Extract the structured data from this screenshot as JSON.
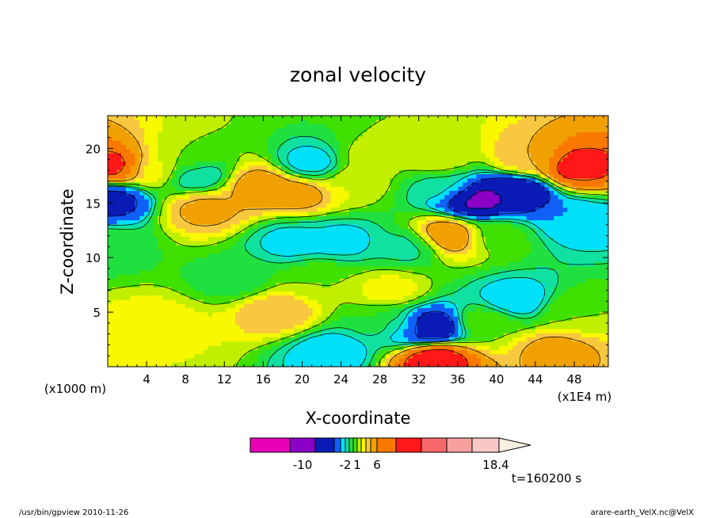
{
  "chart_data": {
    "type": "heatmap",
    "title": "zonal velocity",
    "xlabel": "X-coordinate",
    "ylabel": "Z-coordinate",
    "x_unit_label": "(x1000 m)",
    "x_scale_label": "(x1E4 m)",
    "time_label": "t=160200 s",
    "xlim": [
      0,
      51.5
    ],
    "ylim": [
      0,
      23
    ],
    "x_ticks": [
      "4",
      "8",
      "12",
      "16",
      "20",
      "24",
      "28",
      "32",
      "36",
      "40",
      "44",
      "48"
    ],
    "y_ticks": [
      "5",
      "10",
      "15",
      "20"
    ],
    "colorbar": {
      "labels": [
        "-10",
        "-2",
        "1",
        "6",
        "18.4"
      ],
      "label_values": [
        -10,
        -2,
        1,
        6,
        18.4
      ],
      "levels": [
        -16,
        -12,
        -8,
        -5,
        -3,
        -2,
        -1,
        0,
        1,
        2,
        3,
        4,
        6,
        8,
        10,
        12,
        14,
        16,
        18.4
      ],
      "colors": [
        "#e800b4",
        "#8a00c4",
        "#0a1ab4",
        "#1060f8",
        "#00e0f8",
        "#10e0a0",
        "#20e040",
        "#40e000",
        "#c0f000",
        "#f8f800",
        "#f8c840",
        "#f0a000",
        "#f87800",
        "#ff1818",
        "#f86868",
        "#f8a0a0",
        "#f8c8c8",
        "#f8f0e0"
      ]
    },
    "fields": [
      {
        "x": 0,
        "z": 11,
        "v": -0.4
      },
      {
        "x": 5,
        "z": 4,
        "v": 2.5
      },
      {
        "x": 5,
        "z": 18,
        "v": 2.5
      },
      {
        "x": 0.5,
        "z": 18.3,
        "v": 9
      },
      {
        "x": 0.5,
        "z": 15.3,
        "v": -6
      },
      {
        "x": 8,
        "z": 19,
        "v": 1
      },
      {
        "x": 9,
        "z": 17.5,
        "v": -2.5
      },
      {
        "x": 10,
        "z": 14.5,
        "v": 4.5
      },
      {
        "x": 16,
        "z": 16.5,
        "v": 5.5
      },
      {
        "x": 19.5,
        "z": 16,
        "v": 5
      },
      {
        "x": 19,
        "z": 11.5,
        "v": -2.5
      },
      {
        "x": 17.5,
        "z": 5,
        "v": 4
      },
      {
        "x": 21,
        "z": 18.5,
        "v": -3
      },
      {
        "x": 25,
        "z": 17,
        "v": 2
      },
      {
        "x": 24,
        "z": 11.5,
        "v": -2.5
      },
      {
        "x": 29,
        "z": 7,
        "v": 2.5
      },
      {
        "x": 29,
        "z": 4,
        "v": 0.5
      },
      {
        "x": 31,
        "z": 11,
        "v": -1.5
      },
      {
        "x": 35,
        "z": 12,
        "v": 6
      },
      {
        "x": 34,
        "z": 19,
        "v": 2
      },
      {
        "x": 38,
        "z": 15.3,
        "v": -9
      },
      {
        "x": 42,
        "z": 16,
        "v": -8
      },
      {
        "x": 43,
        "z": 19,
        "v": 4
      },
      {
        "x": 48,
        "z": 18.3,
        "v": 9
      },
      {
        "x": 48,
        "z": 13.5,
        "v": -3
      },
      {
        "x": 40,
        "z": 12,
        "v": 0.5
      },
      {
        "x": 42,
        "z": 6,
        "v": -3
      },
      {
        "x": 48,
        "z": 5,
        "v": 1
      },
      {
        "x": 46,
        "z": 1.5,
        "v": 4.5
      },
      {
        "x": 39,
        "z": 4,
        "v": 1
      },
      {
        "x": 33,
        "z": 3.5,
        "v": -9
      },
      {
        "x": 33.5,
        "z": 0.8,
        "v": 10
      },
      {
        "x": 30.5,
        "z": 3.5,
        "v": -3
      },
      {
        "x": 23,
        "z": 1.3,
        "v": -3
      },
      {
        "x": 5,
        "z": 1.2,
        "v": 2
      },
      {
        "x": 22,
        "z": 8,
        "v": 1
      },
      {
        "x": 27,
        "z": 19,
        "v": 1.5
      },
      {
        "x": 13,
        "z": 8,
        "v": -0.5
      },
      {
        "x": 34.5,
        "z": 16.5,
        "v": -1.5
      }
    ]
  },
  "footer": {
    "left": "/usr/bin/gpview  2010-11-26",
    "right": "arare-earth_VelX.nc@VelX"
  }
}
